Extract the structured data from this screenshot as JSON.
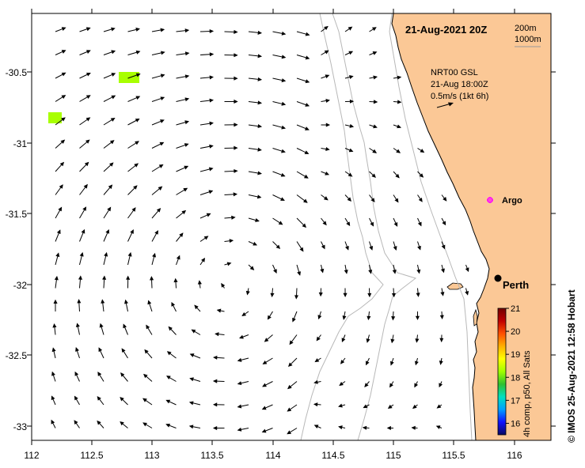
{
  "map": {
    "title": "21-Aug-2021 20Z",
    "bathy_labels": [
      "200m",
      "1000m"
    ],
    "legend": {
      "line1": "NRT00 GSL",
      "line2": "21-Aug 18:00Z",
      "line3": "0.5m/s (1kt 6h)"
    },
    "lon_ticks": [
      "112",
      "112.5",
      "113",
      "113.5",
      "114",
      "114.5",
      "115",
      "115.5",
      "116"
    ],
    "lat_ticks": [
      "-30.5",
      "-31",
      "-31.5",
      "-32",
      "-32.5",
      "-33"
    ],
    "places": {
      "argo": "Argo",
      "perth": "Perth"
    },
    "colorbar": {
      "label": "4h comp, p50, All Sats",
      "ticks": [
        "21",
        "20",
        "19",
        "18",
        "17",
        "16"
      ],
      "range": [
        15.5,
        21
      ],
      "colors": [
        "#0a0a60",
        "#1010ff",
        "#00a0ff",
        "#00e0c0",
        "#30c030",
        "#a0ff00",
        "#ffff00",
        "#ffb000",
        "#ff5000",
        "#c00000",
        "#700000"
      ]
    },
    "credit": "© IMOS 25-Aug-2021 12:58 Hobart",
    "colors": {
      "land": "#fbc896",
      "bathy": "#b8b8b8",
      "sst_patch": "#a8ff00",
      "argo": "#ff00ff"
    }
  }
}
